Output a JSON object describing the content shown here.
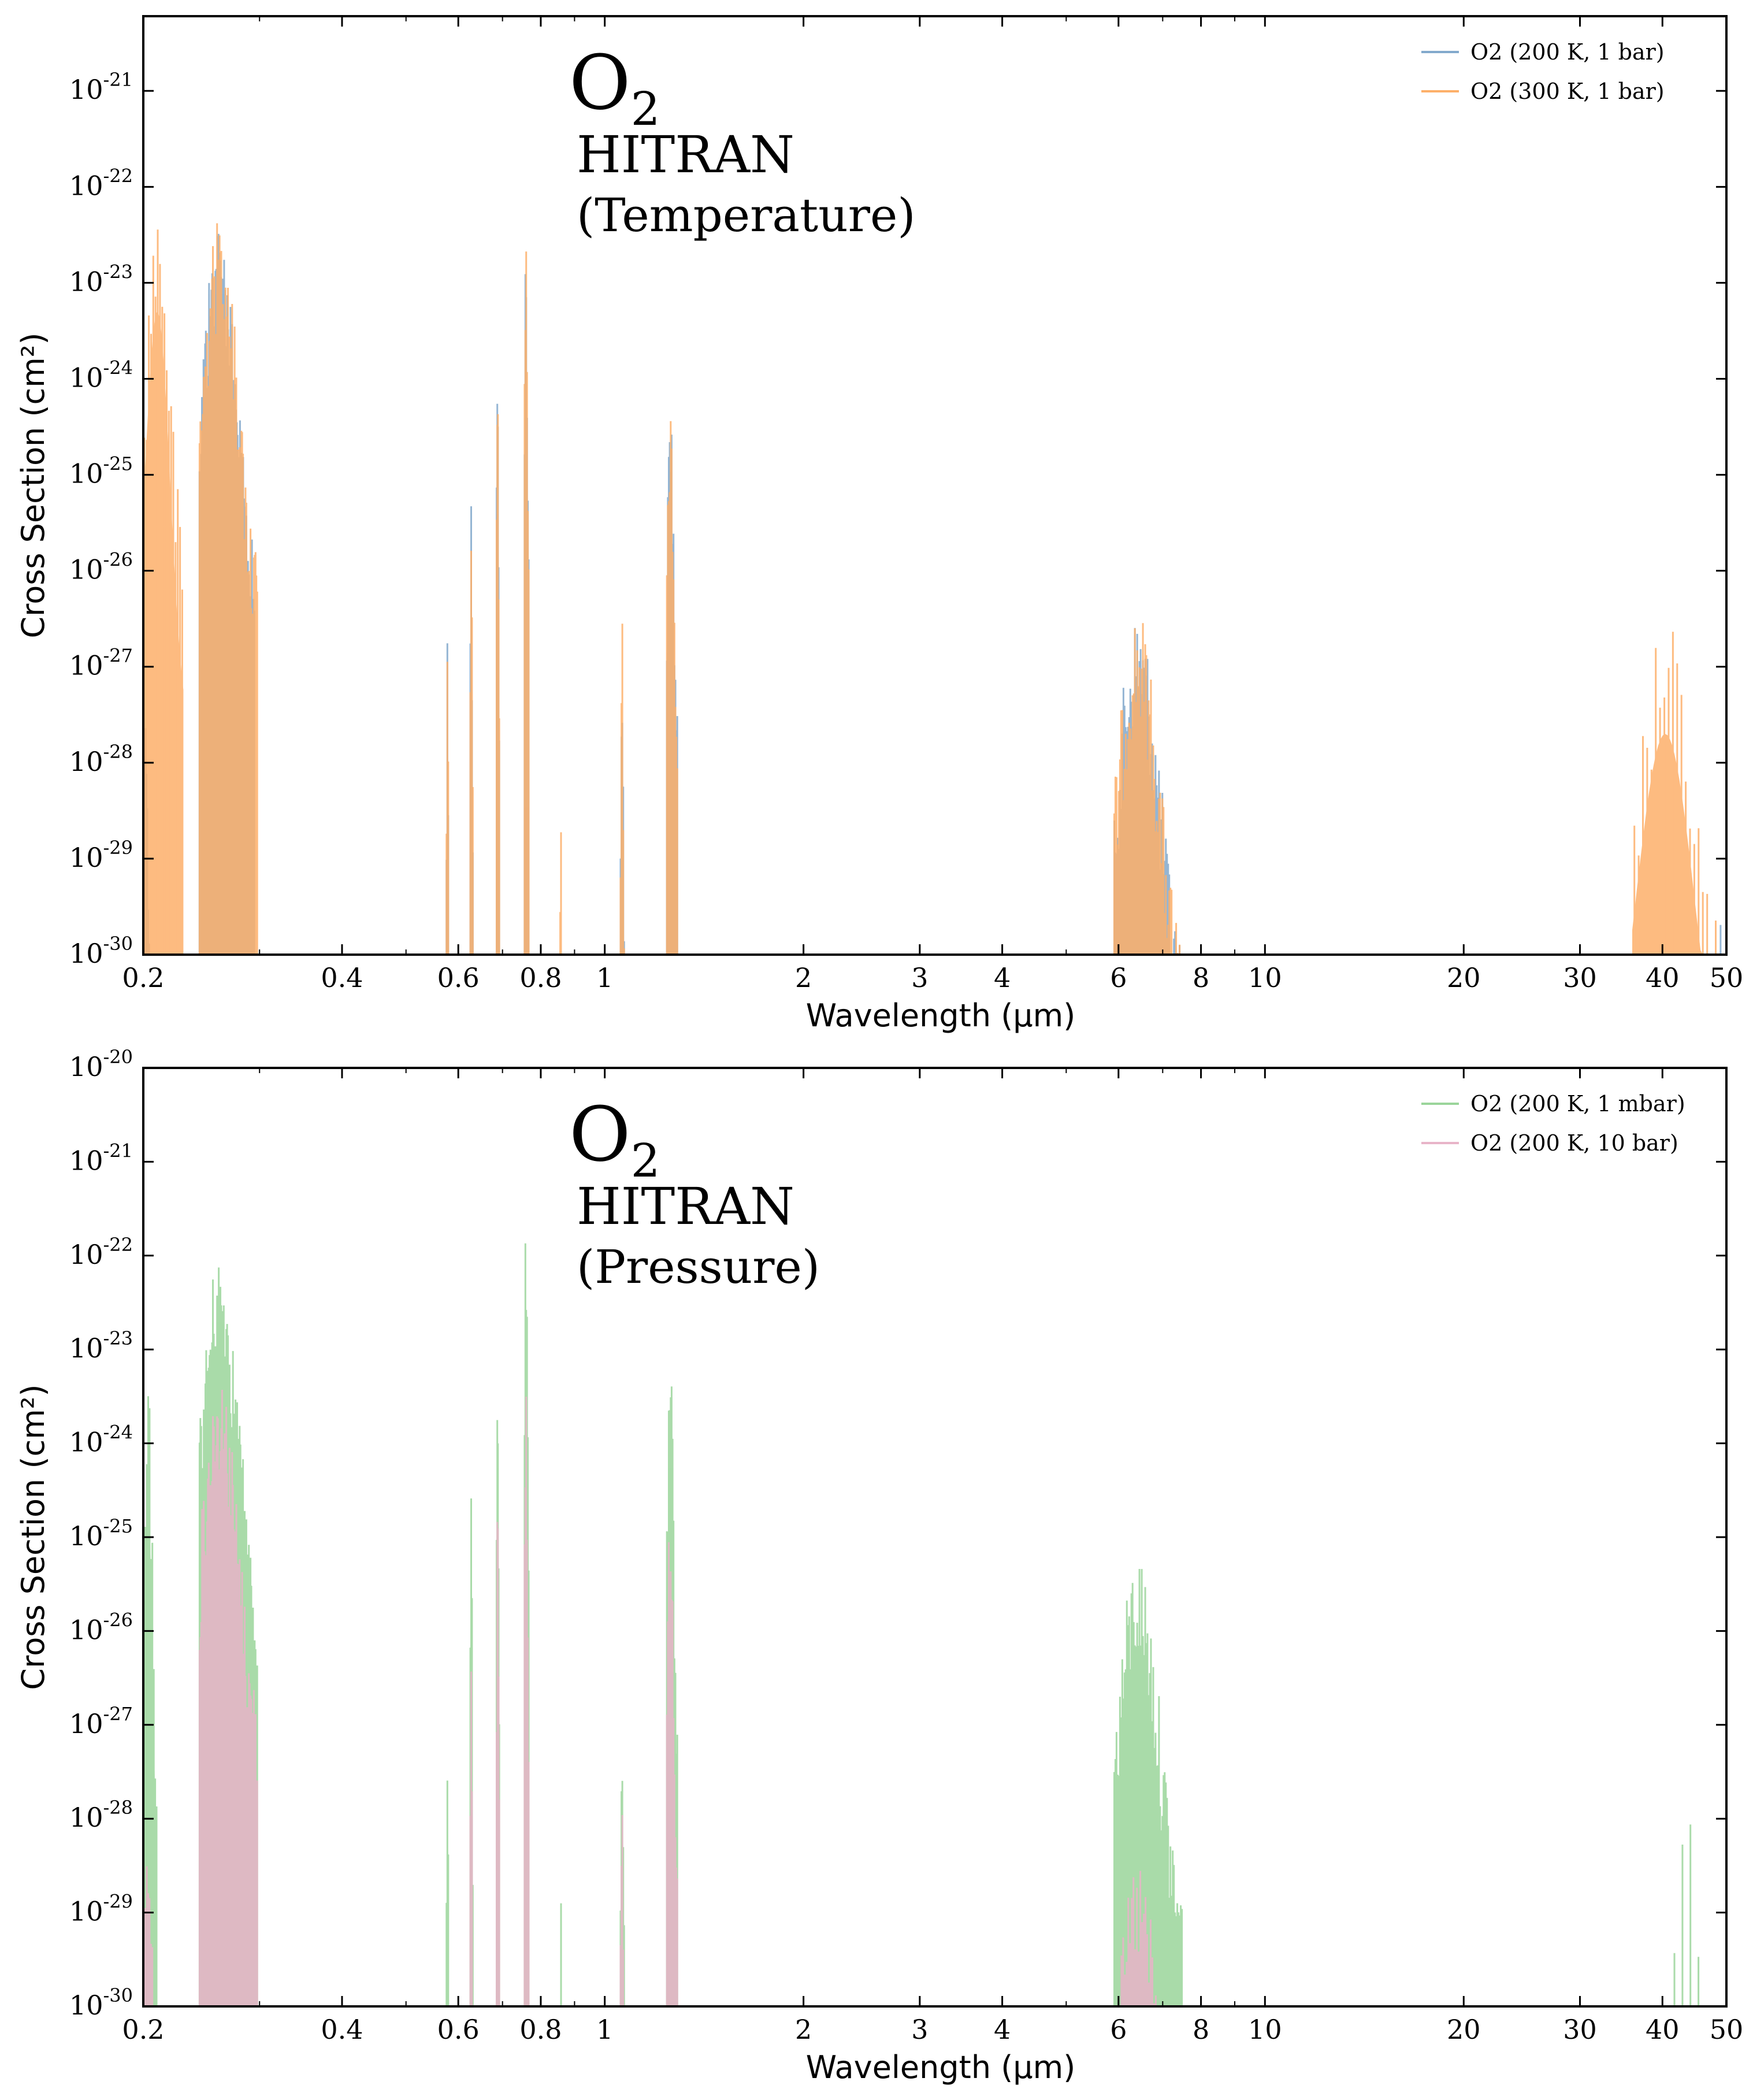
{
  "chart_data": [
    {
      "type": "area",
      "xscale": "log",
      "yscale": "log",
      "xlim": [
        0.2,
        50
      ],
      "ylim": [
        1e-30,
        6e-21
      ],
      "xlabel": "Wavelength (µm)",
      "ylabel": "Cross Section (cm²)",
      "annotation": {
        "molecule_base": "O",
        "molecule_sub": "2",
        "line2": "HITRAN",
        "line3": "(Temperature)"
      },
      "x_ticks": [
        {
          "label": "0.2",
          "v": 0.2
        },
        {
          "label": "0.4",
          "v": 0.4
        },
        {
          "label": "0.6",
          "v": 0.6
        },
        {
          "label": "0.8",
          "v": 0.8
        },
        {
          "label": "1",
          "v": 1
        },
        {
          "label": "2",
          "v": 2
        },
        {
          "label": "3",
          "v": 3
        },
        {
          "label": "4",
          "v": 4
        },
        {
          "label": "6",
          "v": 6
        },
        {
          "label": "8",
          "v": 8
        },
        {
          "label": "10",
          "v": 10
        },
        {
          "label": "20",
          "v": 20
        },
        {
          "label": "30",
          "v": 30
        },
        {
          "label": "40",
          "v": 40
        },
        {
          "label": "50",
          "v": 50
        }
      ],
      "y_ticks": [
        {
          "base": "10",
          "exp": "-30",
          "v": -30
        },
        {
          "base": "10",
          "exp": "-29",
          "v": -29
        },
        {
          "base": "10",
          "exp": "-28",
          "v": -28
        },
        {
          "base": "10",
          "exp": "-27",
          "v": -27
        },
        {
          "base": "10",
          "exp": "-26",
          "v": -26
        },
        {
          "base": "10",
          "exp": "-25",
          "v": -25
        },
        {
          "base": "10",
          "exp": "-24",
          "v": -24
        },
        {
          "base": "10",
          "exp": "-23",
          "v": -23
        },
        {
          "base": "10",
          "exp": "-22",
          "v": -22
        },
        {
          "base": "10",
          "exp": "-21",
          "v": -21
        }
      ],
      "legend_position": "top-right",
      "series": [
        {
          "name": "O2 (200 K, 1 bar)",
          "color": "#82a9cc",
          "bands": [
            {
              "x0": 0.2,
              "x1": 0.205,
              "peak": -26.8,
              "n": 8
            },
            {
              "x0": 0.243,
              "x1": 0.295,
              "peak": -22.3,
              "n": 70
            },
            {
              "x0": 0.575,
              "x1": 0.582,
              "peak": -26.4,
              "n": 4
            },
            {
              "x0": 0.625,
              "x1": 0.632,
              "peak": -24.7,
              "n": 4
            },
            {
              "x0": 0.685,
              "x1": 0.693,
              "peak": -23.3,
              "n": 5
            },
            {
              "x0": 0.755,
              "x1": 0.768,
              "peak": -22.15,
              "n": 6
            },
            {
              "x0": 1.055,
              "x1": 1.075,
              "peak": -26.5,
              "n": 6
            },
            {
              "x0": 1.24,
              "x1": 1.29,
              "peak": -24.0,
              "n": 12
            },
            {
              "x0": 5.9,
              "x1": 7.5,
              "peak": -26.4,
              "n": 60
            },
            {
              "x0": 48,
              "x1": 50,
              "peak": -29.0,
              "n": 3
            }
          ]
        },
        {
          "name": "O2 (300 K, 1 bar)",
          "color": "#fdb06a",
          "bands": [
            {
              "x0": 0.2,
              "x1": 0.23,
              "peak": -22.1,
              "n": 18
            },
            {
              "x0": 0.243,
              "x1": 0.298,
              "peak": -22.3,
              "n": 70
            },
            {
              "x0": 0.575,
              "x1": 0.582,
              "peak": -26.35,
              "n": 4
            },
            {
              "x0": 0.625,
              "x1": 0.632,
              "peak": -24.7,
              "n": 4
            },
            {
              "x0": 0.685,
              "x1": 0.693,
              "peak": -23.35,
              "n": 5
            },
            {
              "x0": 0.755,
              "x1": 0.768,
              "peak": -22.1,
              "n": 6
            },
            {
              "x0": 0.855,
              "x1": 0.862,
              "peak": -27.6,
              "n": 3
            },
            {
              "x0": 1.055,
              "x1": 1.075,
              "peak": -26.45,
              "n": 6
            },
            {
              "x0": 1.24,
              "x1": 1.29,
              "peak": -23.95,
              "n": 12
            },
            {
              "x0": 1.58,
              "x1": 1.6,
              "peak": -29.1,
              "n": 3
            },
            {
              "x0": 5.9,
              "x1": 7.5,
              "peak": -26.4,
              "n": 60
            },
            {
              "x0": 36,
              "x1": 50,
              "peak": -26.5,
              "n": 22
            }
          ]
        }
      ]
    },
    {
      "type": "area",
      "xscale": "log",
      "yscale": "log",
      "xlim": [
        0.2,
        50
      ],
      "ylim": [
        1e-30,
        1e-20
      ],
      "xlabel": "Wavelength (µm)",
      "ylabel": "Cross Section (cm²)",
      "annotation": {
        "molecule_base": "O",
        "molecule_sub": "2",
        "line2": "HITRAN",
        "line3": "(Pressure)"
      },
      "x_ticks": [
        {
          "label": "0.2",
          "v": 0.2
        },
        {
          "label": "0.4",
          "v": 0.4
        },
        {
          "label": "0.6",
          "v": 0.6
        },
        {
          "label": "0.8",
          "v": 0.8
        },
        {
          "label": "1",
          "v": 1
        },
        {
          "label": "2",
          "v": 2
        },
        {
          "label": "3",
          "v": 3
        },
        {
          "label": "4",
          "v": 4
        },
        {
          "label": "6",
          "v": 6
        },
        {
          "label": "8",
          "v": 8
        },
        {
          "label": "10",
          "v": 10
        },
        {
          "label": "20",
          "v": 20
        },
        {
          "label": "30",
          "v": 30
        },
        {
          "label": "40",
          "v": 40
        },
        {
          "label": "50",
          "v": 50
        }
      ],
      "y_ticks": [
        {
          "base": "10",
          "exp": "-30",
          "v": -30
        },
        {
          "base": "10",
          "exp": "-29",
          "v": -29
        },
        {
          "base": "10",
          "exp": "-28",
          "v": -28
        },
        {
          "base": "10",
          "exp": "-27",
          "v": -27
        },
        {
          "base": "10",
          "exp": "-26",
          "v": -26
        },
        {
          "base": "10",
          "exp": "-25",
          "v": -25
        },
        {
          "base": "10",
          "exp": "-24",
          "v": -24
        },
        {
          "base": "10",
          "exp": "-23",
          "v": -23
        },
        {
          "base": "10",
          "exp": "-22",
          "v": -22
        },
        {
          "base": "10",
          "exp": "-21",
          "v": -21
        },
        {
          "base": "10",
          "exp": "-20",
          "v": -20
        }
      ],
      "legend_position": "top-right",
      "series": [
        {
          "name": "O2 (200 K, 1 mbar)",
          "color": "#9bd59b",
          "bands": [
            {
              "x0": 0.2,
              "x1": 0.21,
              "peak": -23.4,
              "n": 10
            },
            {
              "x0": 0.243,
              "x1": 0.298,
              "peak": -21.95,
              "n": 70
            },
            {
              "x0": 0.575,
              "x1": 0.582,
              "peak": -26.7,
              "n": 4
            },
            {
              "x0": 0.625,
              "x1": 0.632,
              "peak": -24.05,
              "n": 4
            },
            {
              "x0": 0.685,
              "x1": 0.693,
              "peak": -22.6,
              "n": 5
            },
            {
              "x0": 0.755,
              "x1": 0.768,
              "peak": -21.4,
              "n": 6
            },
            {
              "x0": 0.855,
              "x1": 0.862,
              "peak": -28.35,
              "n": 3
            },
            {
              "x0": 1.055,
              "x1": 1.075,
              "peak": -26.6,
              "n": 6
            },
            {
              "x0": 1.24,
              "x1": 1.29,
              "peak": -23.1,
              "n": 12
            },
            {
              "x0": 1.58,
              "x1": 1.6,
              "peak": -29.55,
              "n": 3
            },
            {
              "x0": 5.9,
              "x1": 7.5,
              "peak": -25.15,
              "n": 60
            },
            {
              "x0": 40,
              "x1": 50,
              "peak": -27.8,
              "n": 8
            }
          ]
        },
        {
          "name": "O2 (200 K, 10 bar)",
          "color": "#e8b4c8",
          "bands": [
            {
              "x0": 0.2,
              "x1": 0.21,
              "peak": -27.6,
              "n": 10
            },
            {
              "x0": 0.243,
              "x1": 0.298,
              "peak": -23.2,
              "n": 70
            },
            {
              "x0": 0.625,
              "x1": 0.632,
              "peak": -25.5,
              "n": 4
            },
            {
              "x0": 0.685,
              "x1": 0.693,
              "peak": -24.2,
              "n": 5
            },
            {
              "x0": 0.755,
              "x1": 0.768,
              "peak": -23.1,
              "n": 6
            },
            {
              "x0": 1.055,
              "x1": 1.075,
              "peak": -27.2,
              "n": 6
            },
            {
              "x0": 1.24,
              "x1": 1.29,
              "peak": -24.5,
              "n": 12
            },
            {
              "x0": 5.9,
              "x1": 7.5,
              "peak": -28.4,
              "n": 40
            },
            {
              "x0": 45,
              "x1": 50,
              "peak": -29.4,
              "n": 4
            }
          ]
        }
      ]
    }
  ]
}
